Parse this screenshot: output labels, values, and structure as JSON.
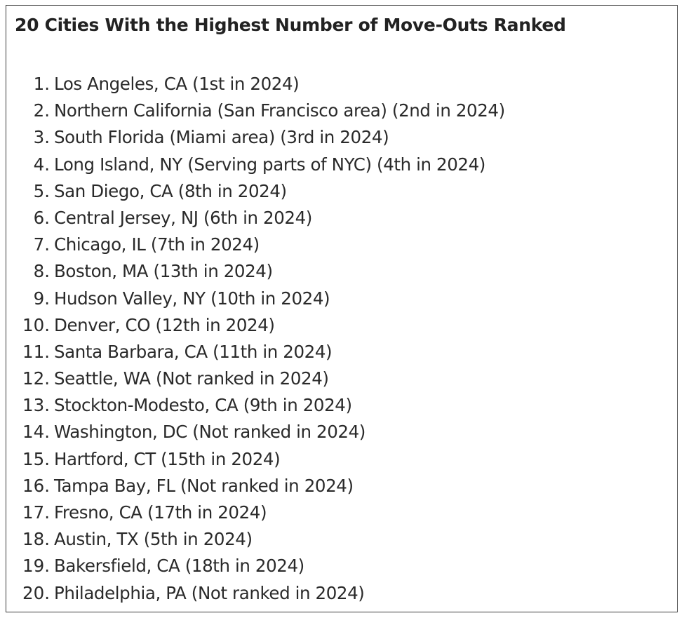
{
  "title": "20 Cities With the Highest Number of Move-Outs Ranked",
  "items": [
    {
      "num": "1.",
      "text": "Los Angeles, CA (1st in 2024)"
    },
    {
      "num": "2.",
      "text": "Northern California (San Francisco area) (2nd in 2024)"
    },
    {
      "num": "3.",
      "text": "South Florida (Miami area) (3rd in 2024)"
    },
    {
      "num": "4.",
      "text": "Long Island, NY (Serving parts of NYC) (4th in 2024)"
    },
    {
      "num": "5.",
      "text": "San Diego, CA (8th in 2024)"
    },
    {
      "num": "6.",
      "text": "Central Jersey, NJ (6th in 2024)"
    },
    {
      "num": "7.",
      "text": "Chicago, IL (7th in 2024)"
    },
    {
      "num": "8.",
      "text": "Boston, MA (13th in 2024)"
    },
    {
      "num": "9.",
      "text": "Hudson Valley, NY (10th in 2024)"
    },
    {
      "num": "10.",
      "text": "Denver, CO (12th in 2024)"
    },
    {
      "num": "11.",
      "text": "Santa Barbara, CA (11th in 2024)"
    },
    {
      "num": "12.",
      "text": "Seattle, WA (Not ranked in 2024)"
    },
    {
      "num": "13.",
      "text": "Stockton-Modesto, CA (9th in 2024)"
    },
    {
      "num": "14.",
      "text": "Washington, DC (Not ranked in 2024)"
    },
    {
      "num": "15.",
      "text": "Hartford, CT (15th in 2024)"
    },
    {
      "num": "16.",
      "text": "Tampa Bay, FL (Not ranked in 2024)"
    },
    {
      "num": "17.",
      "text": "Fresno, CA (17th in 2024)"
    },
    {
      "num": "18.",
      "text": "Austin, TX (5th in 2024)"
    },
    {
      "num": "19.",
      "text": "Bakersfield, CA (18th in 2024)"
    },
    {
      "num": "20.",
      "text": "Philadelphia, PA (Not ranked in 2024)"
    }
  ]
}
